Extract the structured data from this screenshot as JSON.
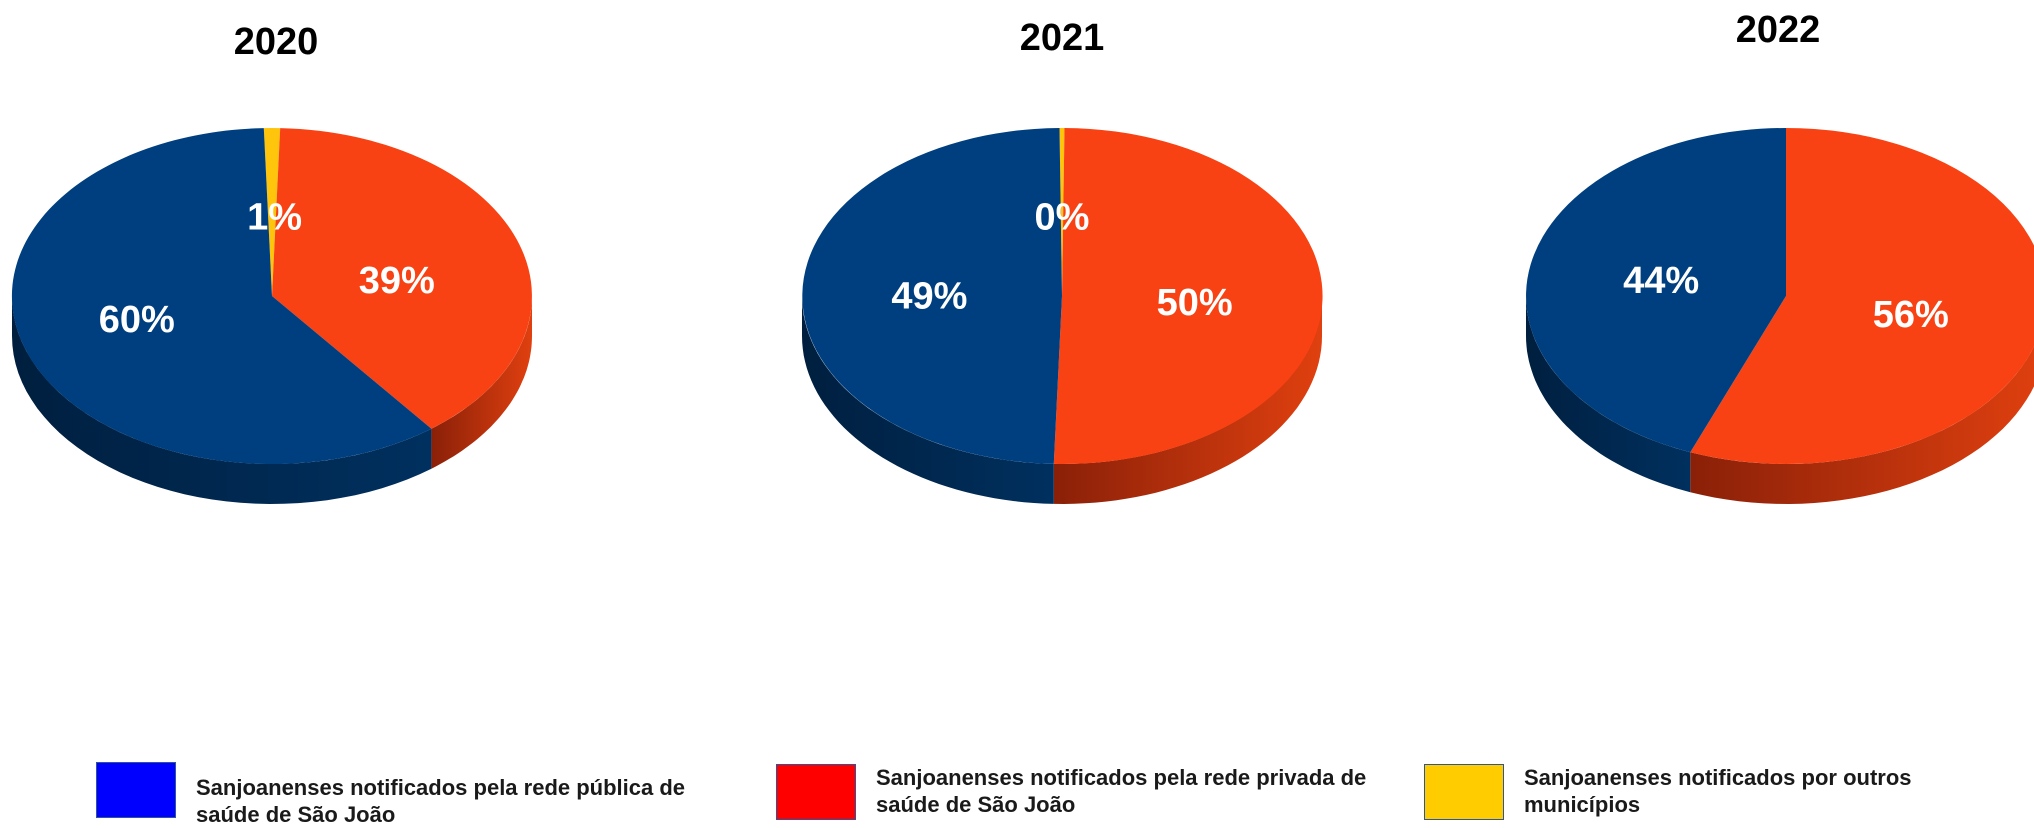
{
  "chart_data": [
    {
      "type": "pie",
      "title": "2020",
      "slices": [
        {
          "series": "publica",
          "value": 60,
          "label": "60%"
        },
        {
          "series": "privada",
          "value": 39,
          "label": "39%"
        },
        {
          "series": "outros",
          "value": 1,
          "label": "1%"
        }
      ]
    },
    {
      "type": "pie",
      "title": "2021",
      "slices": [
        {
          "series": "publica",
          "value": 49,
          "label": "49%"
        },
        {
          "series": "privada",
          "value": 50,
          "label": "50%"
        },
        {
          "series": "outros",
          "value": 0.3,
          "label": "0%"
        }
      ]
    },
    {
      "type": "pie",
      "title": "2022",
      "slices": [
        {
          "series": "publica",
          "value": 44,
          "label": "44%"
        },
        {
          "series": "privada",
          "value": 56,
          "label": "56%"
        }
      ]
    }
  ],
  "colors": {
    "publica": "#003f7f",
    "privada": "#f94213",
    "outros": "#ffc40c"
  },
  "legend": {
    "publica": {
      "label": "Sanjoanenses notificados pela rede pública de saúde de São João",
      "color": "#0000ff"
    },
    "privada": {
      "label": "Sanjoanenses notificados pela rede privada de saúde de São João",
      "color": "#ff0000"
    },
    "outros": {
      "label": "Sanjoanenses notificados por outros municípios",
      "color": "#ffcc00"
    }
  }
}
